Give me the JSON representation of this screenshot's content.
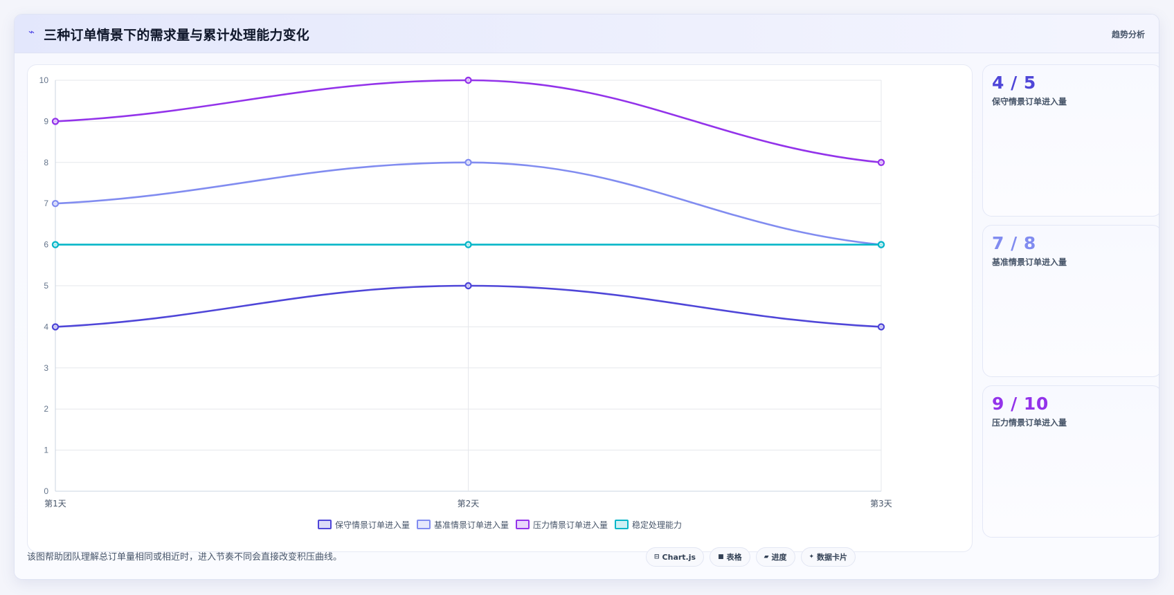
{
  "header": {
    "icon": "wave-icon",
    "title": "三种订单情景下的需求量与累计处理能力变化",
    "tag": "趋势分析"
  },
  "chart_data": {
    "type": "line",
    "categories": [
      "第1天",
      "第2天",
      "第3天"
    ],
    "ylim": [
      0,
      10
    ],
    "yticks": [
      "0",
      "1",
      "2",
      "3",
      "4",
      "5",
      "6",
      "7",
      "8",
      "9",
      "10"
    ],
    "grid": true,
    "legend_position": "bottom",
    "series": [
      {
        "name": "保守情景订单进入量",
        "values": [
          4,
          5,
          4
        ],
        "color": "#4f46d8"
      },
      {
        "name": "基准情景订单进入量",
        "values": [
          7,
          8,
          6
        ],
        "color": "#818cf0"
      },
      {
        "name": "压力情景订单进入量",
        "values": [
          9,
          10,
          8
        ],
        "color": "#9333ea"
      },
      {
        "name": "稳定处理能力",
        "values": [
          6,
          6,
          6
        ],
        "color": "#06b6c8"
      }
    ]
  },
  "side_cards": [
    {
      "value": "4 / 5",
      "label": "保守情景订单进入量",
      "color": "#4f46d8"
    },
    {
      "value": "7 / 8",
      "label": "基准情景订单进入量",
      "color": "#818cf0"
    },
    {
      "value": "9 / 10",
      "label": "压力情景订单进入量",
      "color": "#9333ea"
    }
  ],
  "footnote": "该图帮助团队理解总订单量相同或相近时，进入节奏不同会直接改变积压曲线。",
  "pills": [
    {
      "icon": "⊟",
      "icon_name": "chart-icon",
      "label": "Chart.js"
    },
    {
      "icon": "■",
      "icon_name": "table-icon",
      "label": "表格"
    },
    {
      "icon": "▰",
      "icon_name": "progress-icon",
      "label": "进度"
    },
    {
      "icon": "✦",
      "icon_name": "sparkle-icon",
      "label": "数据卡片"
    }
  ]
}
